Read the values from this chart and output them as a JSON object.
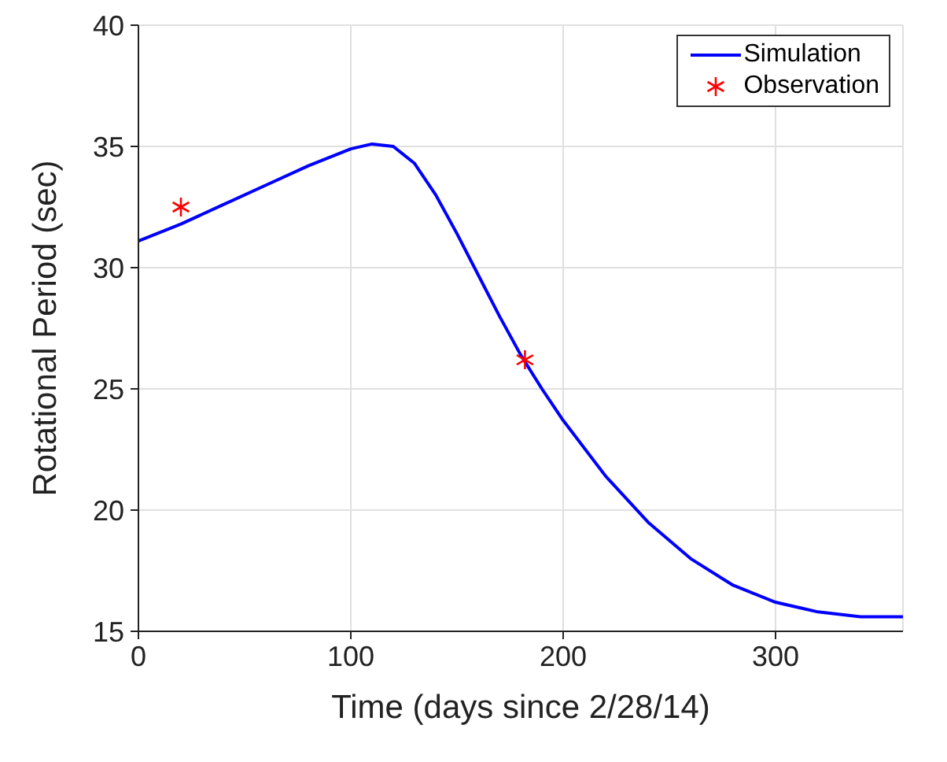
{
  "chart_data": {
    "type": "line",
    "xlabel": "Time (days since 2/28/14)",
    "ylabel": "Rotational Period (sec)",
    "xlim": [
      0,
      360
    ],
    "xticks": [
      0,
      100,
      200,
      300
    ],
    "ylim": [
      15,
      40
    ],
    "yticks": [
      15,
      20,
      25,
      30,
      35,
      40
    ],
    "grid": true,
    "legend": "top right",
    "series": [
      {
        "name": "Simulation",
        "color": "#0000ff",
        "marker": "none",
        "x": [
          0,
          20,
          40,
          60,
          80,
          100,
          110,
          120,
          130,
          140,
          150,
          160,
          170,
          180,
          190,
          200,
          220,
          240,
          260,
          280,
          300,
          320,
          340,
          360
        ],
        "values": [
          31.1,
          31.8,
          32.6,
          33.4,
          34.2,
          34.9,
          35.1,
          35.0,
          34.3,
          33.0,
          31.4,
          29.7,
          28.0,
          26.4,
          25.0,
          23.7,
          21.4,
          19.5,
          18.0,
          16.9,
          16.2,
          15.8,
          15.6,
          15.6
        ]
      },
      {
        "name": "Observation",
        "type": "scatter",
        "color": "#ff0000",
        "marker": "cross",
        "x": [
          20,
          182
        ],
        "values": [
          32.5,
          26.2
        ]
      }
    ]
  }
}
